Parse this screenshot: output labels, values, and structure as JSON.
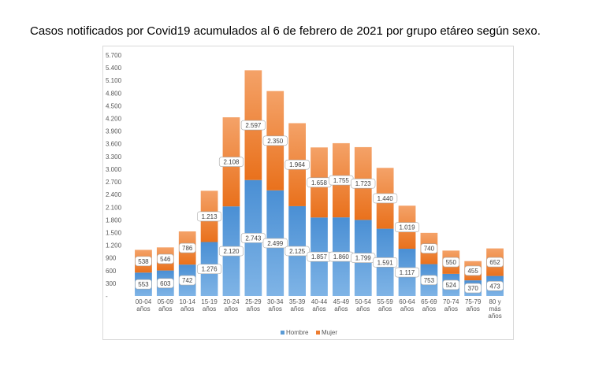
{
  "title": "Casos notificados por Covid19 acumulados al 6 de febrero de 2021 por grupo etáreo según sexo.",
  "colors": {
    "hombre": "#5b9bd5",
    "mujer": "#ed7d31"
  },
  "chart_data": {
    "type": "bar",
    "stacked": true,
    "title": "Casos notificados por Covid19 acumulados al 6 de febrero de 2021 por grupo etáreo según sexo.",
    "categories": [
      [
        "00-04",
        "años"
      ],
      [
        "05-09",
        "años"
      ],
      [
        "10-14",
        "años"
      ],
      [
        "15-19",
        "años"
      ],
      [
        "20-24",
        "años"
      ],
      [
        "25-29",
        "años"
      ],
      [
        "30-34",
        "años"
      ],
      [
        "35-39",
        "años"
      ],
      [
        "40-44",
        "años"
      ],
      [
        "45-49",
        "años"
      ],
      [
        "50-54",
        "años"
      ],
      [
        "55-59",
        "años"
      ],
      [
        "60-64",
        "años"
      ],
      [
        "65-69",
        "años"
      ],
      [
        "70-74",
        "años"
      ],
      [
        "75-79",
        "años"
      ],
      [
        "80 y",
        "más",
        "años"
      ]
    ],
    "series": [
      {
        "name": "Hombre",
        "values": [
          553,
          603,
          742,
          1276,
          2120,
          2743,
          2499,
          2125,
          1857,
          1860,
          1799,
          1591,
          1117,
          753,
          524,
          370,
          473
        ]
      },
      {
        "name": "Mujer",
        "values": [
          538,
          546,
          786,
          1213,
          2108,
          2597,
          2350,
          1964,
          1658,
          1755,
          1723,
          1440,
          1019,
          740,
          550,
          455,
          652
        ]
      }
    ],
    "data_labels": {
      "Hombre": [
        "553",
        "603",
        "742",
        "1.276",
        "2.120",
        "2.743",
        "2.499",
        "2.125",
        "1.857",
        "1.860",
        "1.799",
        "1.591",
        "1.117",
        "753",
        "524",
        "370",
        "473"
      ],
      "Mujer": [
        "538",
        "546",
        "786",
        "1.213",
        "2.108",
        "2.597",
        "2.350",
        "1.964",
        "1.658",
        "1.755",
        "1.723",
        "1.440",
        "1.019",
        "740",
        "550",
        "455",
        "652"
      ]
    },
    "yticks": [
      0,
      300,
      600,
      900,
      1200,
      1500,
      1800,
      2100,
      2400,
      2700,
      3000,
      3300,
      3600,
      3900,
      4200,
      4500,
      4800,
      5100,
      5400,
      5700
    ],
    "ytick_labels": [
      "-",
      "300",
      "600",
      "900",
      "1.200",
      "1.500",
      "1.800",
      "2.100",
      "2.400",
      "2.700",
      "3.000",
      "3.300",
      "3.600",
      "3.900",
      "4.200",
      "4.500",
      "4.800",
      "5.100",
      "5.400",
      "5.700"
    ],
    "ylim": [
      0,
      5700
    ],
    "xlabel": "",
    "ylabel": "",
    "legend": {
      "position": "bottom",
      "labels": [
        "Hombre",
        "Mujer"
      ]
    },
    "grid": false
  }
}
